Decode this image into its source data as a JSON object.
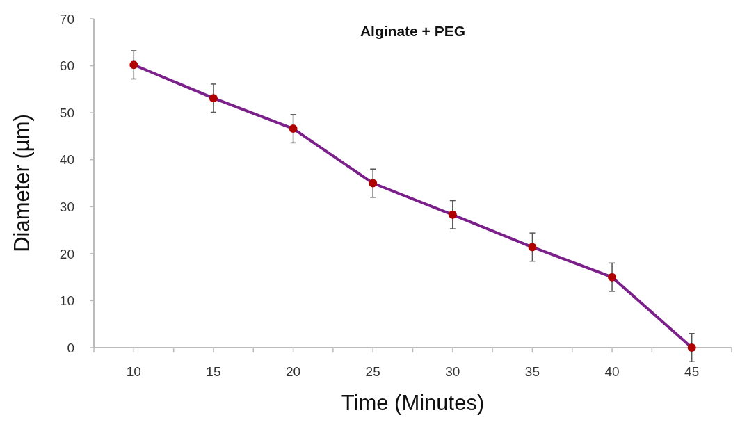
{
  "chart_data": {
    "type": "line",
    "title": "Alginate + PEG",
    "xlabel": "Time (Minutes)",
    "ylabel": "Diameter (µm)",
    "x": [
      10,
      15,
      20,
      25,
      30,
      35,
      40,
      45
    ],
    "series": [
      {
        "color": "#7b1f8a",
        "values": [
          60.2,
          53.1,
          46.6,
          35.0,
          28.3,
          21.4,
          15.0,
          0
        ],
        "errors": [
          3,
          3,
          3,
          3,
          3,
          3,
          3,
          3
        ]
      }
    ],
    "marker": "circle",
    "line_style": "solid",
    "grid": false,
    "xlim": [
      7.5,
      47.5
    ],
    "xticks": [
      {
        "value": 7.5,
        "label": null
      },
      10,
      {
        "value": 12.5,
        "label": null
      },
      15,
      {
        "value": 17.5,
        "label": null
      },
      20,
      {
        "value": 22.5,
        "label": null
      },
      25,
      {
        "value": 27.5,
        "label": null
      },
      30,
      {
        "value": 32.5,
        "label": null
      },
      35,
      {
        "value": 37.5,
        "label": null
      },
      40,
      {
        "value": 42.5,
        "label": null
      },
      45,
      {
        "value": 47.5,
        "label": null
      }
    ],
    "ylim": [
      0,
      70
    ],
    "yticks": [
      0,
      10,
      20,
      30,
      40,
      50,
      60,
      70
    ]
  }
}
